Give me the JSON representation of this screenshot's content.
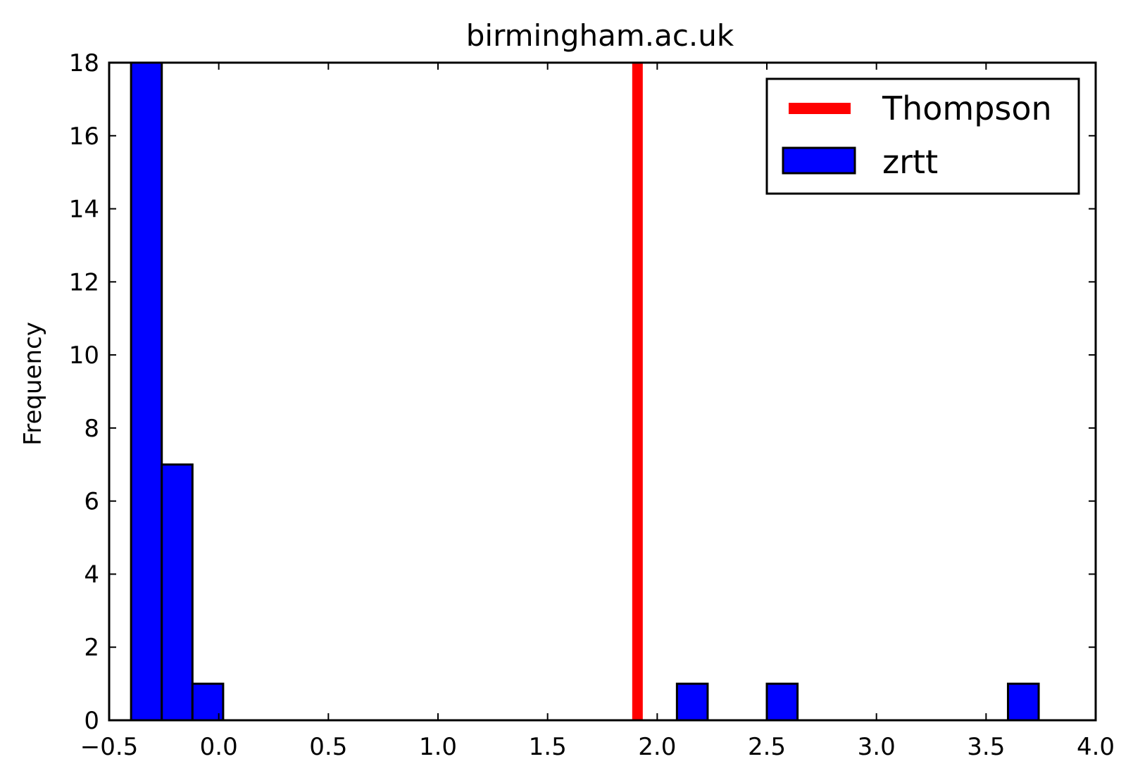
{
  "chart_data": {
    "type": "bar",
    "title": "birmingham.ac.uk",
    "xlabel": "",
    "ylabel": "Frequency",
    "xlim": [
      -0.5,
      4.0
    ],
    "ylim": [
      0,
      18
    ],
    "xticks": [
      -0.5,
      0.0,
      0.5,
      1.0,
      1.5,
      2.0,
      2.5,
      3.0,
      3.5,
      4.0
    ],
    "xtick_labels": [
      "−0.5",
      "0.0",
      "0.5",
      "1.0",
      "1.5",
      "2.0",
      "2.5",
      "3.0",
      "3.5",
      "4.0"
    ],
    "yticks": [
      0,
      2,
      4,
      6,
      8,
      10,
      12,
      14,
      16,
      18
    ],
    "ytick_labels": [
      "0",
      "2",
      "4",
      "6",
      "8",
      "10",
      "12",
      "14",
      "16",
      "18"
    ],
    "grid": false,
    "legend_position": "top-right",
    "series": [
      {
        "name": "zrtt",
        "kind": "histogram",
        "color": "#0000ff",
        "bins": [
          {
            "x0": -0.4,
            "x1": -0.26,
            "count": 18
          },
          {
            "x0": -0.26,
            "x1": -0.12,
            "count": 7
          },
          {
            "x0": -0.12,
            "x1": 0.02,
            "count": 1
          },
          {
            "x0": 2.09,
            "x1": 2.23,
            "count": 1
          },
          {
            "x0": 2.5,
            "x1": 2.64,
            "count": 1
          },
          {
            "x0": 3.6,
            "x1": 3.74,
            "count": 1
          }
        ]
      },
      {
        "name": "Thompson",
        "kind": "vline",
        "color": "#ff0000",
        "x": 1.91
      }
    ]
  }
}
